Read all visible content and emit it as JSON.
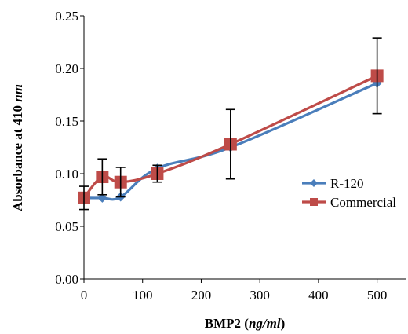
{
  "chart_data": {
    "type": "line",
    "xlabel": {
      "prefix": "BMP2 (",
      "italic": "ng/ml",
      "suffix": ")"
    },
    "ylabel": {
      "prefix": "Absorbance at 410 ",
      "italic": "nm"
    },
    "xlim": [
      0,
      550
    ],
    "ylim": [
      0,
      0.25
    ],
    "x_ticks": [
      0,
      100,
      200,
      300,
      400,
      500
    ],
    "y_ticks": [
      0.0,
      0.05,
      0.1,
      0.15,
      0.2,
      0.25
    ],
    "y_tick_labels": [
      "0.00",
      "0.05",
      "0.10",
      "0.15",
      "0.20",
      "0.25"
    ],
    "grid": false,
    "legend_position": "right",
    "smoothed": true,
    "series": [
      {
        "name": "R-120",
        "color": "#4a7ebb",
        "marker": "diamond",
        "x": [
          0,
          31.25,
          62.5,
          125,
          250,
          500
        ],
        "y": [
          0.077,
          0.077,
          0.078,
          0.105,
          0.125,
          0.186
        ],
        "error": [
          0.0,
          0.0,
          0.0,
          0.0,
          0.0,
          0.0
        ]
      },
      {
        "name": "Commercial",
        "color": "#be4b48",
        "marker": "square",
        "x": [
          0,
          31.25,
          62.5,
          125,
          250,
          500
        ],
        "y": [
          0.077,
          0.097,
          0.092,
          0.1,
          0.128,
          0.193
        ],
        "error": [
          0.011,
          0.017,
          0.014,
          0.008,
          0.033,
          0.036
        ]
      }
    ]
  }
}
